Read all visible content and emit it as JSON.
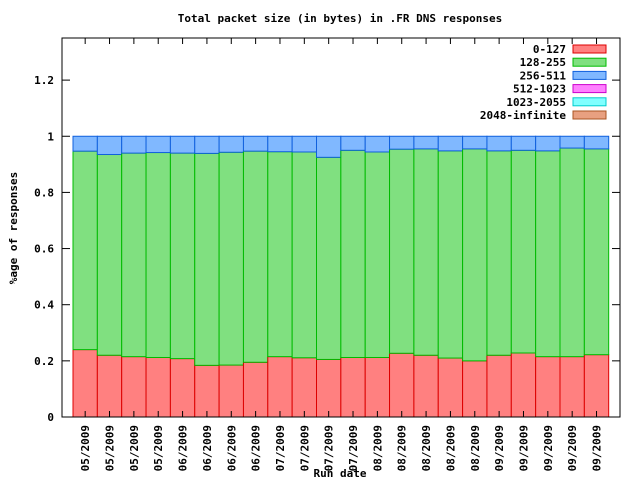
{
  "chart_data": {
    "type": "bar",
    "title": "Total packet size (in bytes) in .FR DNS responses",
    "xlabel": "Run date",
    "ylabel": "%age of responses",
    "ylim": [
      0,
      1.35
    ],
    "yticks": [
      0,
      0.2,
      0.4,
      0.6,
      0.8,
      1,
      1.2
    ],
    "ytick_labels": [
      "0",
      "0.2",
      "0.4",
      "0.6",
      "0.8",
      "1",
      "1.2"
    ],
    "grid": false,
    "stacked": true,
    "legend_position": "top-right",
    "categories": [
      "05/2009",
      "05/2009",
      "05/2009",
      "05/2009",
      "06/2009",
      "06/2009",
      "06/2009",
      "06/2009",
      "07/2009",
      "07/2009",
      "07/2009",
      "07/2009",
      "08/2009",
      "08/2009",
      "08/2009",
      "08/2009",
      "08/2009",
      "09/2009",
      "09/2009",
      "09/2009",
      "09/2009",
      "09/2009"
    ],
    "series": [
      {
        "name": "0-127",
        "color": "#ff8080",
        "edge": "#dd0000",
        "values": [
          0.24,
          0.22,
          0.215,
          0.212,
          0.208,
          0.184,
          0.185,
          0.195,
          0.215,
          0.211,
          0.205,
          0.212,
          0.212,
          0.227,
          0.22,
          0.21,
          0.2,
          0.22,
          0.228,
          0.215,
          0.215,
          0.222
        ]
      },
      {
        "name": "128-255",
        "color": "#80e080",
        "edge": "#00bb00",
        "values": [
          0.707,
          0.715,
          0.725,
          0.73,
          0.732,
          0.755,
          0.758,
          0.752,
          0.73,
          0.733,
          0.72,
          0.738,
          0.732,
          0.727,
          0.735,
          0.738,
          0.755,
          0.728,
          0.722,
          0.733,
          0.743,
          0.733
        ]
      },
      {
        "name": "256-511",
        "color": "#80b8ff",
        "edge": "#1060dd",
        "values": [
          0.053,
          0.065,
          0.06,
          0.058,
          0.06,
          0.061,
          0.057,
          0.053,
          0.055,
          0.056,
          0.075,
          0.05,
          0.056,
          0.046,
          0.045,
          0.052,
          0.045,
          0.052,
          0.05,
          0.052,
          0.042,
          0.045
        ]
      },
      {
        "name": "512-1023",
        "color": "#ff80ff",
        "edge": "#cc00cc",
        "values": [
          0,
          0,
          0,
          0,
          0,
          0,
          0,
          0,
          0,
          0,
          0,
          0,
          0,
          0,
          0,
          0,
          0,
          0,
          0,
          0,
          0,
          0
        ]
      },
      {
        "name": "1023-2055",
        "color": "#80ffff",
        "edge": "#00cccc",
        "values": [
          0,
          0,
          0,
          0,
          0,
          0,
          0,
          0,
          0,
          0,
          0,
          0,
          0,
          0,
          0,
          0,
          0,
          0,
          0,
          0,
          0,
          0
        ]
      },
      {
        "name": "2048-infinite",
        "color": "#e8a080",
        "edge": "#aa5522",
        "values": [
          0,
          0,
          0,
          0,
          0,
          0,
          0,
          0,
          0,
          0,
          0,
          0,
          0,
          0,
          0,
          0,
          0,
          0,
          0,
          0,
          0,
          0
        ]
      }
    ]
  }
}
